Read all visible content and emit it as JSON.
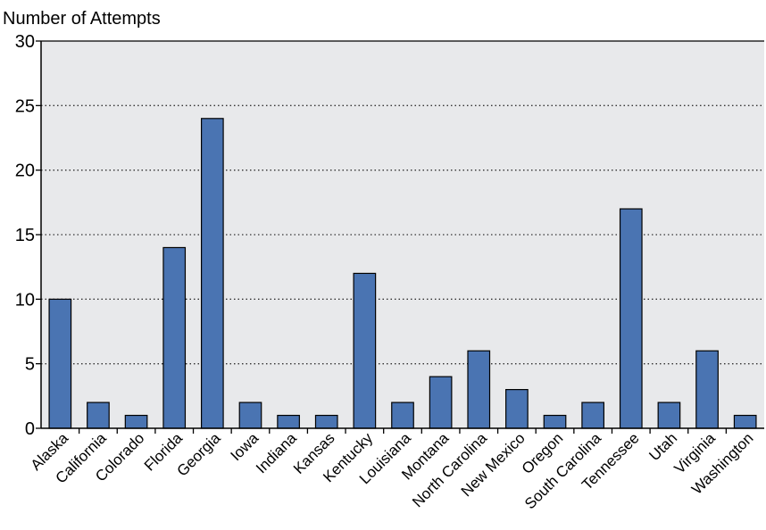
{
  "chart_data": {
    "type": "bar",
    "title": "",
    "xlabel": "",
    "ylabel": "Number of Attempts",
    "ylim": [
      0,
      30
    ],
    "yticks": [
      0,
      5,
      10,
      15,
      20,
      25,
      30
    ],
    "grid": "horizontal dotted",
    "categories": [
      "Alaska",
      "California",
      "Colorado",
      "Florida",
      "Georgia",
      "Iowa",
      "Indiana",
      "Kansas",
      "Kentucky",
      "Louisiana",
      "Montana",
      "North Carolina",
      "New Mexico",
      "Oregon",
      "South Carolina",
      "Tennessee",
      "Utah",
      "Virginia",
      "Washington"
    ],
    "values": [
      10,
      2,
      1,
      14,
      24,
      2,
      1,
      1,
      12,
      2,
      4,
      6,
      3,
      1,
      2,
      17,
      2,
      6,
      1
    ],
    "colors": {
      "bar": "#4a74b2",
      "plot_background": "#e8e9eb",
      "grid": "#333333"
    }
  }
}
